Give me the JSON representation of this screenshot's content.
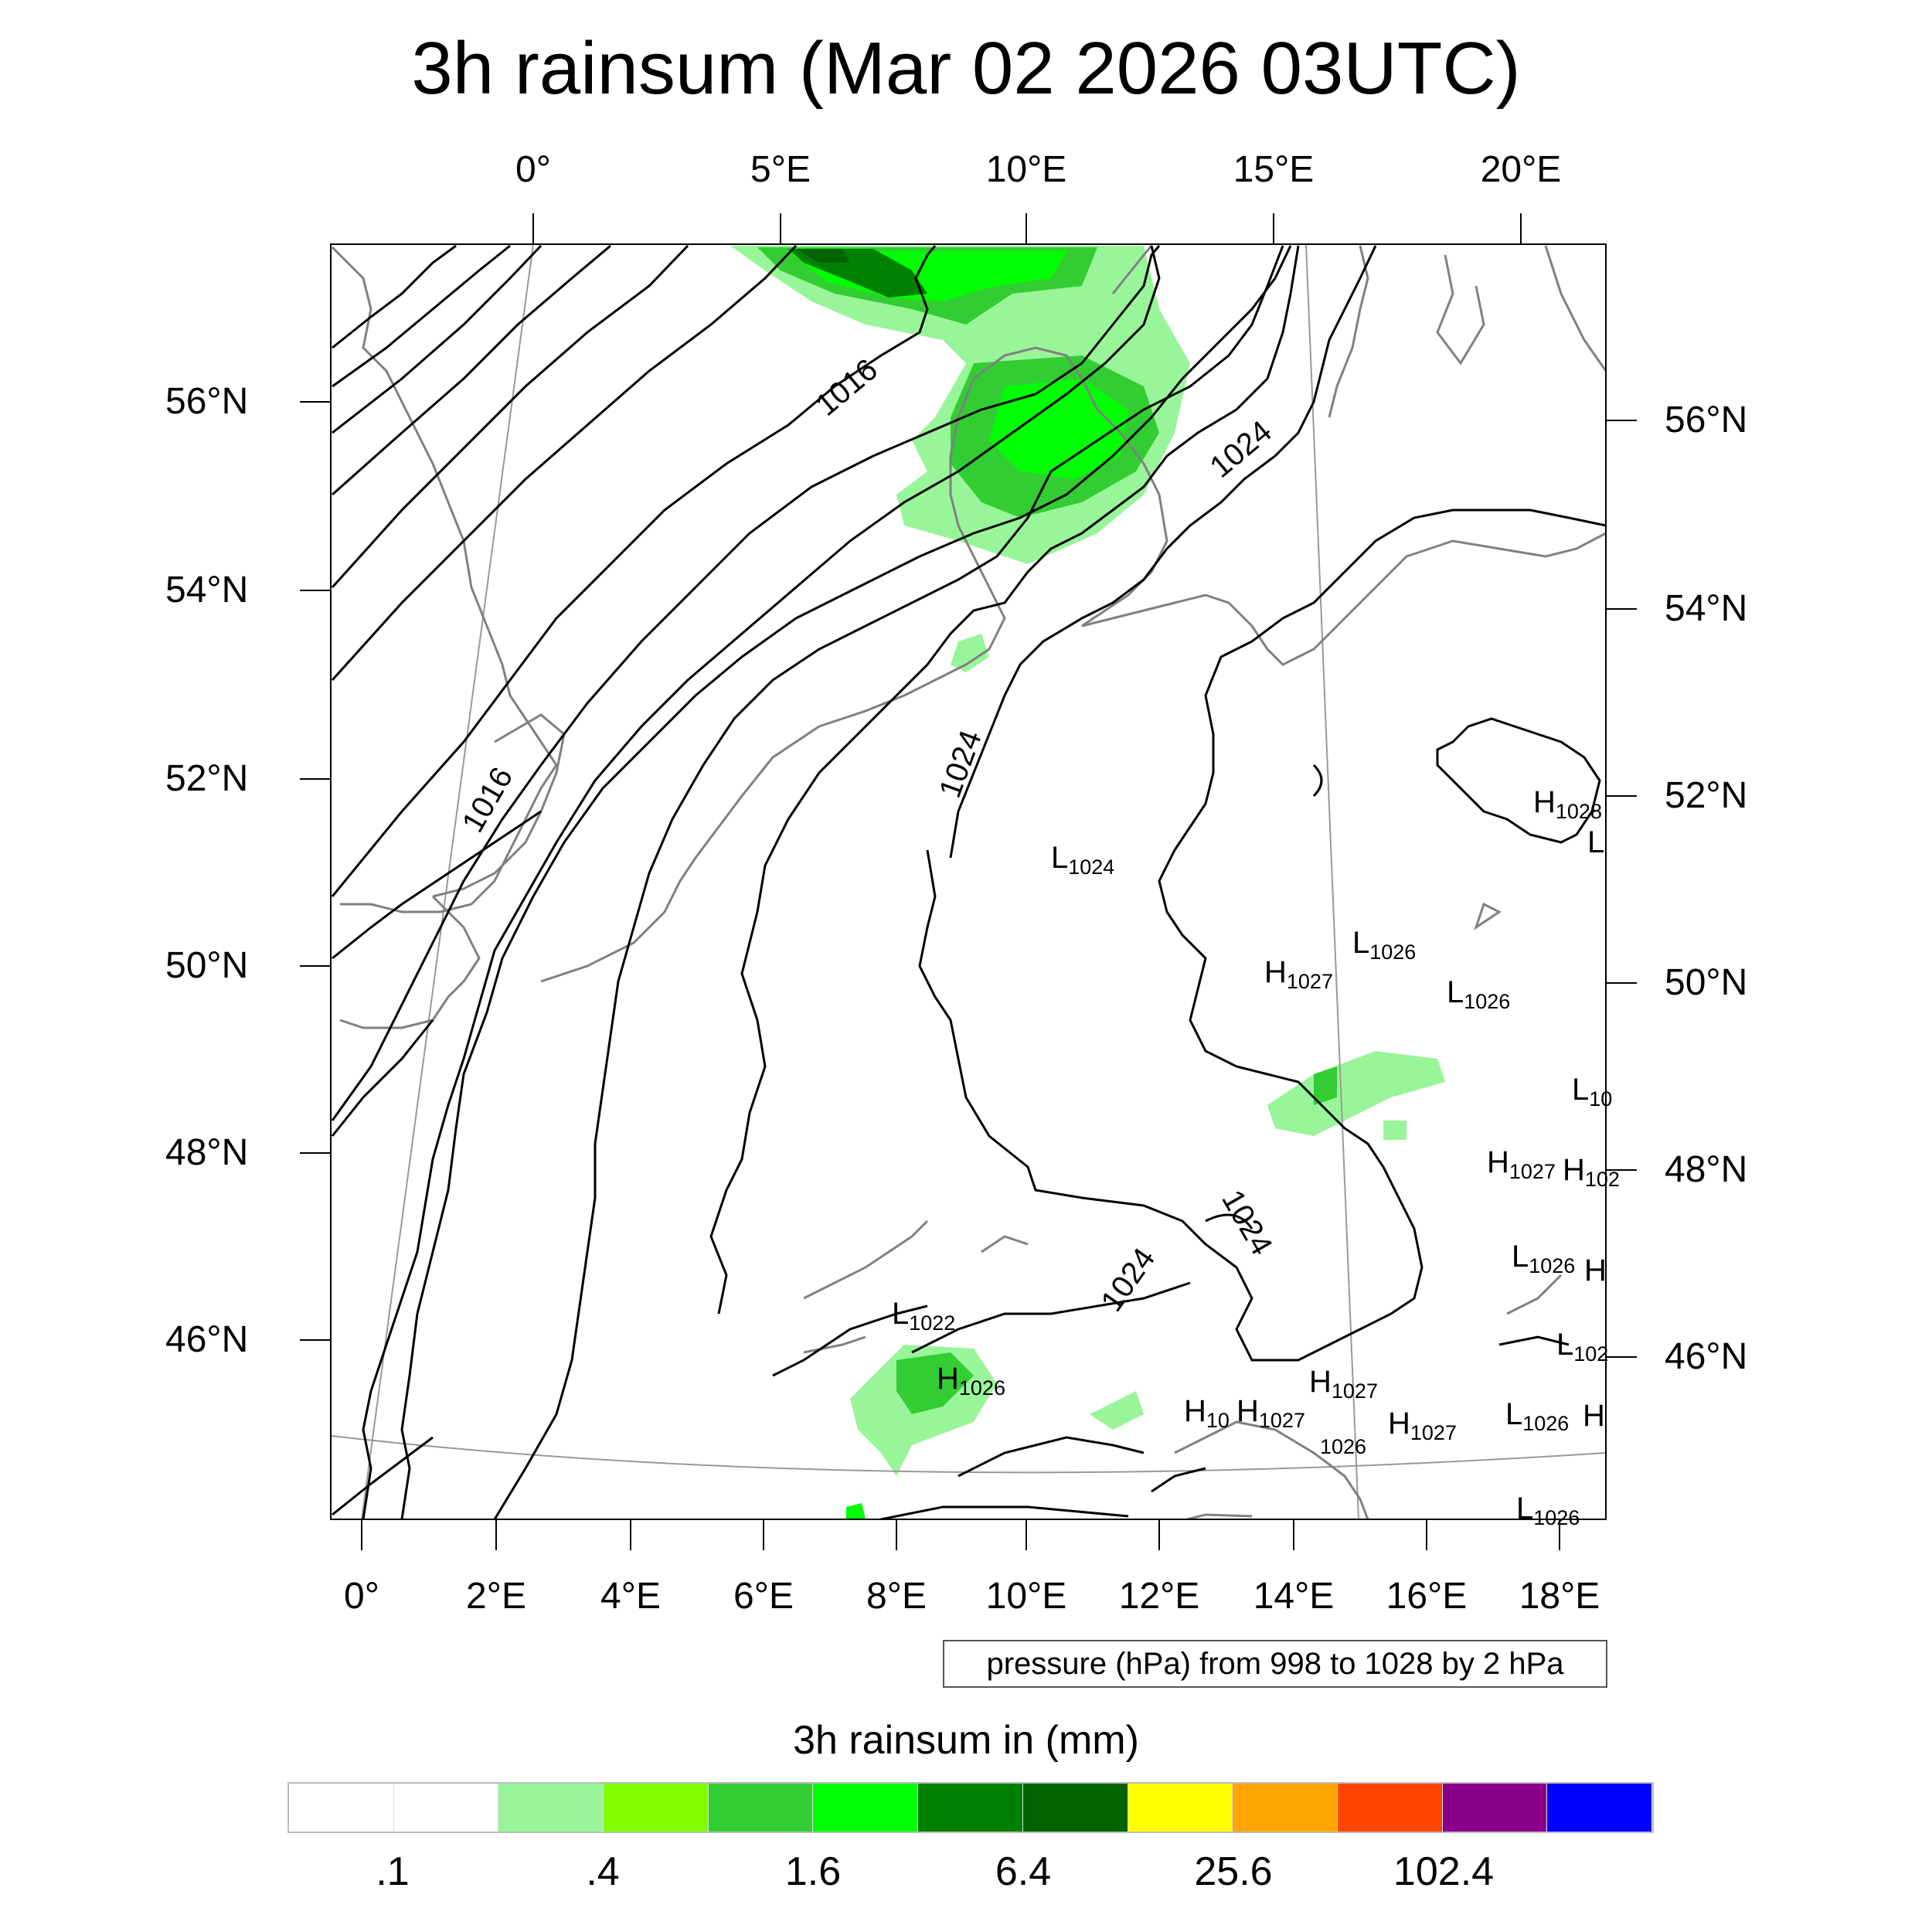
{
  "title": "3h rainsum (Mar 02 2026 03UTC)",
  "map": {
    "top_lon_labels": [
      "0°",
      "5°E",
      "10°E",
      "15°E",
      "20°E"
    ],
    "bottom_lon_labels": [
      "0°",
      "2°E",
      "4°E",
      "6°E",
      "8°E",
      "10°E",
      "12°E",
      "14°E",
      "16°E",
      "18°E"
    ],
    "left_lat_labels": [
      "56°N",
      "54°N",
      "52°N",
      "50°N",
      "48°N",
      "46°N"
    ],
    "right_lat_labels": [
      "56°N",
      "54°N",
      "52°N",
      "50°N",
      "48°N",
      "46°N"
    ],
    "contour_labels": [
      "1016",
      "1016",
      "1024",
      "1024",
      "1024",
      "1024"
    ],
    "pressure_centers": [
      {
        "type": "H",
        "value": "1028"
      },
      {
        "type": "L",
        "value": ""
      },
      {
        "type": "L",
        "value": "1024"
      },
      {
        "type": "L",
        "value": "1026"
      },
      {
        "type": "H",
        "value": "1027"
      },
      {
        "type": "L",
        "value": "1026"
      },
      {
        "type": "L",
        "value": "10"
      },
      {
        "type": "H",
        "value": "1027"
      },
      {
        "type": "H",
        "value": "102"
      },
      {
        "type": "L",
        "value": "1026"
      },
      {
        "type": "H",
        "value": ""
      },
      {
        "type": "L",
        "value": "102"
      },
      {
        "type": "L",
        "value": "1022"
      },
      {
        "type": "H",
        "value": "1026"
      },
      {
        "type": "H",
        "value": "1027"
      },
      {
        "type": "H",
        "value": "10"
      },
      {
        "type": "H",
        "value": "1027"
      },
      {
        "type": "",
        "value": "1026"
      },
      {
        "type": "H",
        "value": "1027"
      },
      {
        "type": "L",
        "value": "1026"
      },
      {
        "type": "H",
        "value": ""
      },
      {
        "type": "L",
        "value": "1026"
      }
    ],
    "colors": {
      "isobar": "#000000",
      "coast": "#808080",
      "grid": "#999999"
    }
  },
  "pressure_note": "pressure (hPa) from 998 to 1028 by 2 hPa",
  "colorbar": {
    "title": "3h rainsum in (mm)",
    "colors": [
      "#ffffff",
      "#ffffff",
      "#99f599",
      "#80ff00",
      "#32cd32",
      "#00ff00",
      "#008000",
      "#006400",
      "#ffff00",
      "#ffa500",
      "#ff4500",
      "#8b008b",
      "#0000ff"
    ],
    "labels": [
      ".1",
      ".4",
      "1.6",
      "6.4",
      "25.6",
      "102.4"
    ]
  },
  "rain_colors": {
    "light": "#99f599",
    "mid1": "#32cd32",
    "mid2": "#00ff00",
    "heavy": "#008000",
    "heaviest": "#006400"
  }
}
